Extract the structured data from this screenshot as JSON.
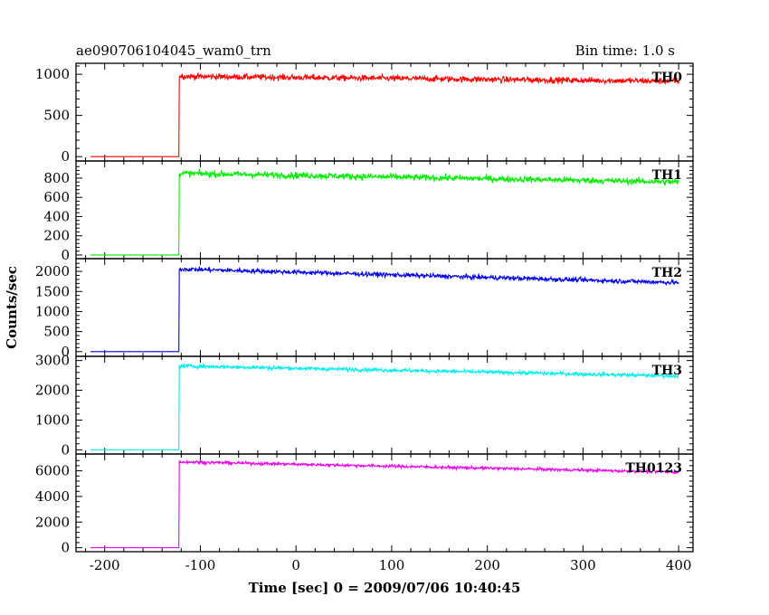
{
  "chart_data": {
    "type": "line",
    "title_left": "ae090706104045_wam0_trn",
    "title_right": "Bin time: 1.0 s",
    "xlabel": "Time [sec] 0 = 2009/07/06 10:40:45",
    "ylabel": "Counts/sec",
    "xlim": [
      -230,
      415
    ],
    "x_ticks": [
      -200,
      -100,
      0,
      100,
      200,
      300,
      400
    ],
    "trigger_time": -122,
    "data_start": -215,
    "data_end": 400,
    "panels": [
      {
        "name": "TH0",
        "color": "#ff0000",
        "ylim": [
          -20,
          1100
        ],
        "y_ticks": [
          0,
          500,
          1000
        ],
        "pre_level": 0,
        "post_start": 975,
        "post_end": 915,
        "noise": 35
      },
      {
        "name": "TH1",
        "color": "#00ee00",
        "ylim": [
          -10,
          950
        ],
        "y_ticks": [
          0,
          200,
          400,
          600,
          800
        ],
        "pre_level": 0,
        "post_start": 850,
        "post_end": 760,
        "noise": 32
      },
      {
        "name": "TH2",
        "color": "#0000ee",
        "ylim": [
          -50,
          2250
        ],
        "y_ticks": [
          0,
          500,
          1000,
          1500,
          2000
        ],
        "pre_level": 0,
        "post_start": 2060,
        "post_end": 1720,
        "noise": 55
      },
      {
        "name": "TH3",
        "color": "#00eeee",
        "ylim": [
          -50,
          3050
        ],
        "y_ticks": [
          0,
          1000,
          2000,
          3000
        ],
        "pre_level": 0,
        "post_start": 2820,
        "post_end": 2480,
        "noise": 60
      },
      {
        "name": "TH0123",
        "color": "#ee00ee",
        "ylim": [
          -100,
          7100
        ],
        "y_ticks": [
          0,
          2000,
          4000,
          6000
        ],
        "pre_level": 0,
        "post_start": 6700,
        "post_end": 5900,
        "noise": 110
      }
    ]
  }
}
